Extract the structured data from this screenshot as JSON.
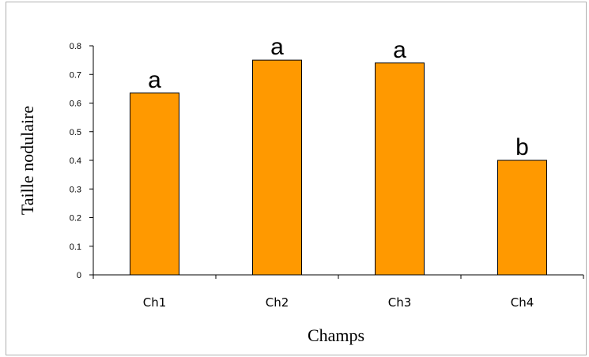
{
  "chart_data": {
    "type": "bar",
    "categories": [
      "Ch1",
      "Ch2",
      "Ch3",
      "Ch4"
    ],
    "values": [
      0.635,
      0.75,
      0.74,
      0.4
    ],
    "data_labels": [
      "a",
      "a",
      "a",
      "b"
    ],
    "xlabel": "Champs",
    "ylabel": "Taille nodulaire",
    "ylim": [
      0,
      0.8
    ],
    "yticks": [
      "0",
      "0.1",
      "0.2",
      "0.3",
      "0.4",
      "0.5",
      "0.6",
      "0.7",
      "0.8"
    ],
    "grid": false,
    "legend": "none",
    "bar_color": "#ff9900",
    "bar_edge_color": "#000000"
  }
}
